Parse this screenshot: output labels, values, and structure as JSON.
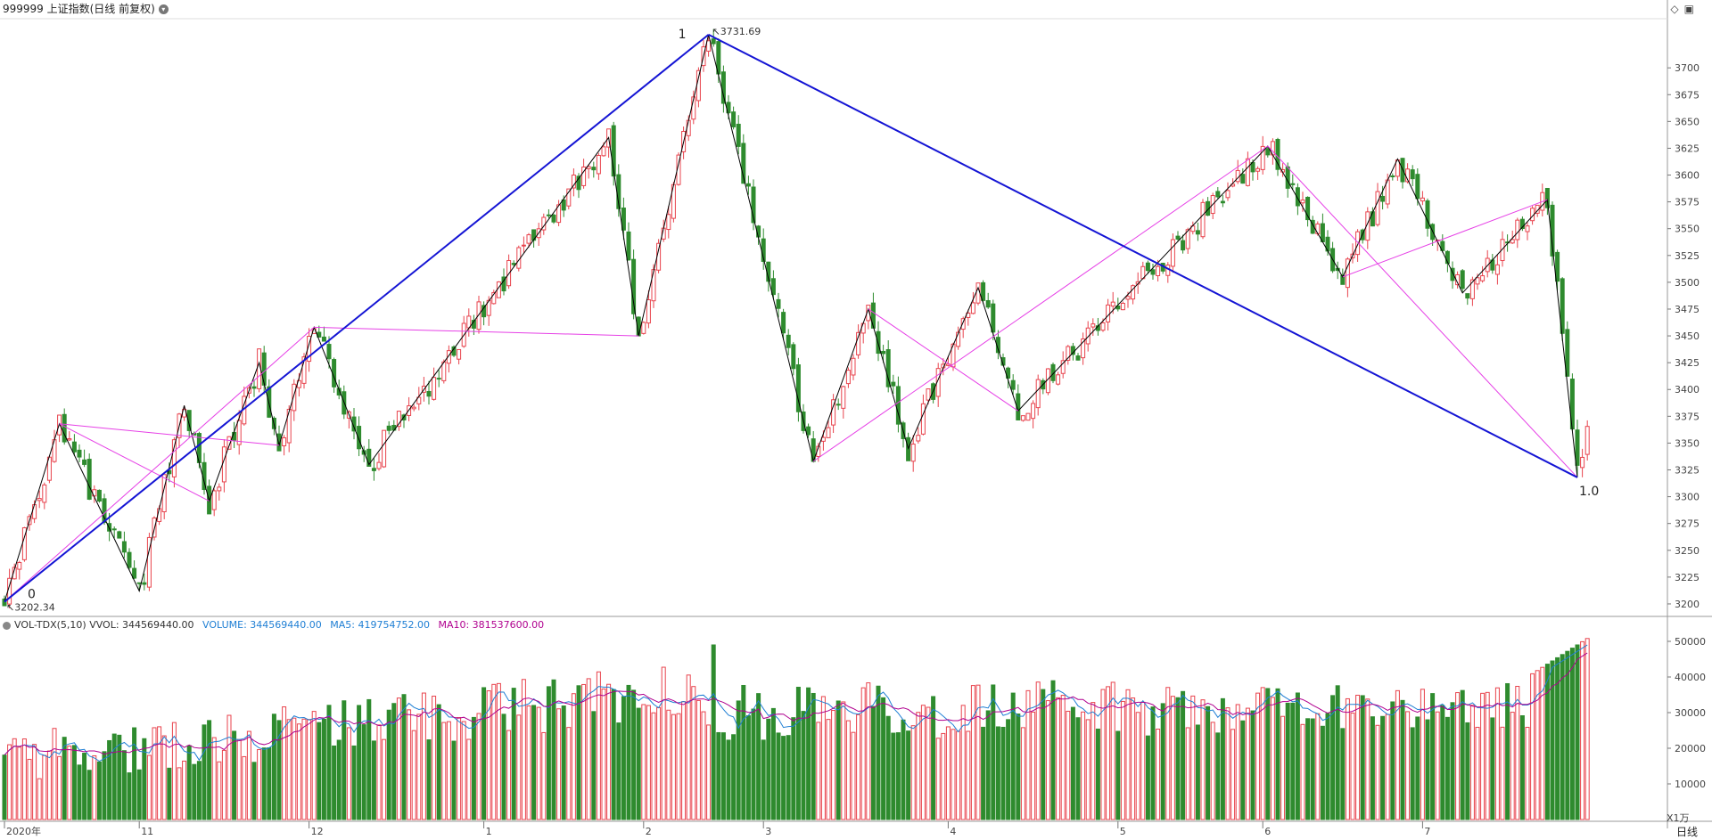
{
  "header": {
    "title": "999999 上证指数(日线 前复权)",
    "icons": [
      "diamond-icon",
      "panel-icon"
    ]
  },
  "volume_header": {
    "indicator": "VOL-TDX(5,10)",
    "vvol": "VVOL: 344569440.00",
    "volume": "VOLUME: 344569440.00",
    "ma5": "MA5: 419754752.00",
    "ma10": "MA10: 381537600.00"
  },
  "colors": {
    "up": "#e8434d",
    "down": "#2e8b2e",
    "blue_line": "#1414d4",
    "magenta": "#e640e6",
    "zigzag": "#000000",
    "ma5": "#1f7fd4",
    "ma10": "#b0008f"
  },
  "chart_data": {
    "type": "candlestick",
    "title": "999999 上证指数(日线 前复权)",
    "price_axis": {
      "ticks": [
        3200,
        3225,
        3250,
        3275,
        3300,
        3325,
        3350,
        3375,
        3400,
        3425,
        3450,
        3475,
        3500,
        3525,
        3550,
        3575,
        3600,
        3625,
        3650,
        3675,
        3700
      ],
      "ylim": [
        3190,
        3745
      ]
    },
    "volume_axis": {
      "ticks": [
        10000,
        20000,
        30000,
        40000,
        50000
      ],
      "unit_label": "X1万",
      "ylim": [
        0,
        52000
      ]
    },
    "x_labels": [
      {
        "label": "2020年",
        "index": 0
      },
      {
        "label": "11",
        "index": 27
      },
      {
        "label": "12",
        "index": 61
      },
      {
        "label": "1",
        "index": 96
      },
      {
        "label": "2",
        "index": 128
      },
      {
        "label": "3",
        "index": 152
      },
      {
        "label": "4",
        "index": 189
      },
      {
        "label": "5",
        "index": 223
      },
      {
        "label": "6",
        "index": 252
      },
      {
        "label": "7",
        "index": 284
      }
    ],
    "period_label": "日线",
    "annotations": {
      "high_value": "3731.69",
      "low_value": "3202.34",
      "label_0": "0",
      "label_1": "1",
      "label_1_0": "1.0"
    },
    "pivots": [
      {
        "i": 0,
        "p": 3202
      },
      {
        "i": 11,
        "p": 3368
      },
      {
        "i": 27,
        "p": 3212
      },
      {
        "i": 36,
        "p": 3385
      },
      {
        "i": 41,
        "p": 3296
      },
      {
        "i": 51,
        "p": 3425
      },
      {
        "i": 55,
        "p": 3348
      },
      {
        "i": 62,
        "p": 3458
      },
      {
        "i": 73,
        "p": 3330
      },
      {
        "i": 121,
        "p": 3635
      },
      {
        "i": 127,
        "p": 3450
      },
      {
        "i": 141,
        "p": 3731
      },
      {
        "i": 162,
        "p": 3333
      },
      {
        "i": 173,
        "p": 3475
      },
      {
        "i": 181,
        "p": 3345
      },
      {
        "i": 195,
        "p": 3495
      },
      {
        "i": 203,
        "p": 3380
      },
      {
        "i": 253,
        "p": 3627
      },
      {
        "i": 268,
        "p": 3505
      },
      {
        "i": 279,
        "p": 3615
      },
      {
        "i": 292,
        "p": 3490
      },
      {
        "i": 309,
        "p": 3577
      },
      {
        "i": 315,
        "p": 3318
      }
    ],
    "blue_lines": [
      {
        "i1": 0,
        "p1": 3202,
        "i2": 141,
        "p2": 3731
      },
      {
        "i1": 141,
        "p1": 3731,
        "i2": 315,
        "p2": 3318
      }
    ],
    "magenta_lines": [
      {
        "i1": 11,
        "p1": 3368,
        "i2": 55,
        "p2": 3348
      },
      {
        "i1": 11,
        "p1": 3368,
        "i2": 41,
        "p2": 3296
      },
      {
        "i1": 0,
        "p1": 3202,
        "i2": 62,
        "p2": 3458
      },
      {
        "i1": 62,
        "p1": 3458,
        "i2": 127,
        "p2": 3450
      },
      {
        "i1": 162,
        "p1": 3333,
        "i2": 253,
        "p2": 3627
      },
      {
        "i1": 173,
        "p1": 3475,
        "i2": 203,
        "p2": 3380
      },
      {
        "i1": 253,
        "p1": 3627,
        "i2": 315,
        "p2": 3318
      },
      {
        "i1": 268,
        "p1": 3505,
        "i2": 309,
        "p2": 3577
      }
    ]
  }
}
